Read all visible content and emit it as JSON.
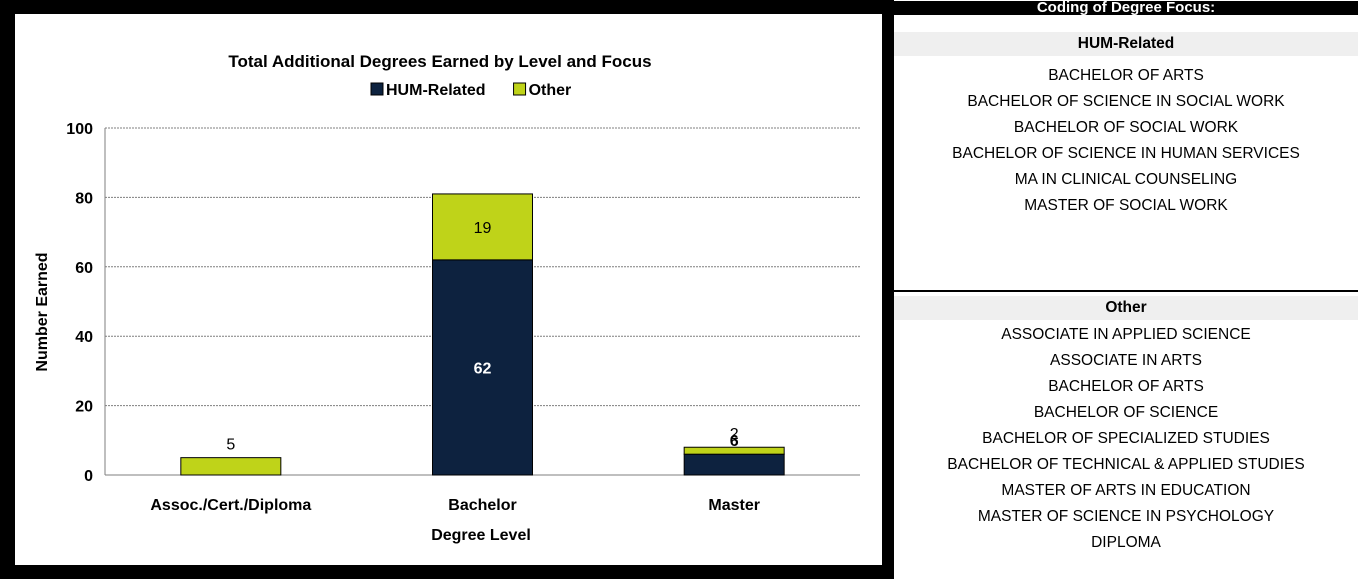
{
  "chart_data": {
    "type": "bar",
    "stacked": true,
    "title": "Total Additional Degrees Earned by Level and Focus",
    "xlabel": "Degree Level",
    "ylabel": "Number Earned",
    "ylim": [
      0,
      100
    ],
    "yticks": [
      0,
      20,
      40,
      60,
      80,
      100
    ],
    "grid": true,
    "legend_position": "top",
    "categories": [
      "Assoc./Cert./Diploma",
      "Bachelor",
      "Master"
    ],
    "series": [
      {
        "name": "HUM-Related",
        "color": "#0d223f",
        "values": [
          0,
          62,
          6
        ],
        "labels": [
          "",
          "62",
          "6"
        ]
      },
      {
        "name": "Other",
        "color": "#bfd319",
        "values": [
          5,
          19,
          2
        ],
        "labels": [
          "5",
          "19",
          "2"
        ]
      }
    ]
  },
  "coding": {
    "header": "Coding of Degree Focus:",
    "groups": [
      {
        "title": "HUM-Related",
        "items": [
          "BACHELOR OF ARTS",
          "BACHELOR OF SCIENCE IN SOCIAL WORK",
          "BACHELOR OF SOCIAL WORK",
          "BACHELOR OF SCIENCE IN HUMAN SERVICES",
          "MA IN CLINICAL COUNSELING",
          "MASTER OF SOCIAL WORK"
        ]
      },
      {
        "title": "Other",
        "items": [
          "ASSOCIATE IN APPLIED SCIENCE",
          "ASSOCIATE IN ARTS",
          "BACHELOR OF ARTS",
          "BACHELOR OF SCIENCE",
          "BACHELOR OF SPECIALIZED STUDIES",
          "BACHELOR OF TECHNICAL & APPLIED STUDIES",
          "MASTER OF ARTS IN EDUCATION",
          "MASTER OF SCIENCE IN PSYCHOLOGY",
          "DIPLOMA"
        ]
      }
    ]
  }
}
